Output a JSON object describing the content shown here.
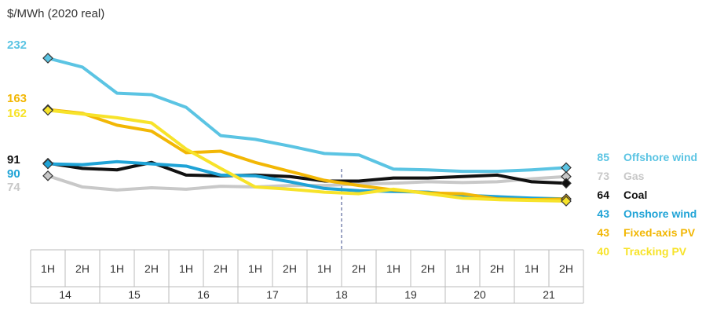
{
  "chart_data": {
    "type": "line",
    "ylabel": "$/MWh (2020 real)",
    "categories": [
      "1H",
      "2H",
      "1H",
      "2H",
      "1H",
      "2H",
      "1H",
      "2H",
      "1H",
      "2H",
      "1H",
      "2H",
      "1H",
      "2H",
      "1H",
      "2H"
    ],
    "years": [
      "14",
      "15",
      "16",
      "17",
      "18",
      "19",
      "20",
      "21"
    ],
    "marker_category_index": 9,
    "ylim": [
      20,
      250
    ],
    "series": [
      {
        "name": "Gas",
        "color": "#c8c8c8",
        "start_label": "74",
        "end_label": "73",
        "values": [
          74,
          59,
          55,
          58,
          56,
          60,
          59,
          61,
          61,
          63,
          64,
          66,
          65,
          66,
          70,
          73
        ]
      },
      {
        "name": "Coal",
        "color": "#111111",
        "start_label": "91",
        "end_label": "64",
        "values": [
          91,
          84,
          82,
          92,
          75,
          74,
          75,
          73,
          67,
          67,
          71,
          71,
          73,
          75,
          66,
          64
        ]
      },
      {
        "name": "Onshore wind",
        "color": "#1fa3d6",
        "start_label": "90",
        "end_label": "43",
        "values": [
          90,
          89,
          93,
          90,
          87,
          75,
          74,
          66,
          57,
          54,
          53,
          52,
          48,
          46,
          44,
          43
        ]
      },
      {
        "name": "Fixed-axis PV",
        "color": "#f2b705",
        "start_label": "163",
        "end_label": "43",
        "values": [
          163,
          158,
          142,
          134,
          105,
          107,
          92,
          80,
          68,
          61,
          55,
          51,
          50,
          43,
          42,
          43
        ]
      },
      {
        "name": "Tracking PV",
        "color": "#f7e32a",
        "start_label": "162",
        "end_label": "40",
        "values": [
          162,
          157,
          152,
          145,
          110,
          84,
          59,
          56,
          52,
          50,
          56,
          50,
          44,
          42,
          41,
          40
        ]
      },
      {
        "name": "Offshore wind",
        "color": "#5bc4e3",
        "start_label": "232",
        "end_label": "85",
        "values": [
          232,
          220,
          185,
          183,
          166,
          128,
          123,
          114,
          104,
          102,
          83,
          82,
          80,
          80,
          82,
          85
        ]
      }
    ]
  }
}
